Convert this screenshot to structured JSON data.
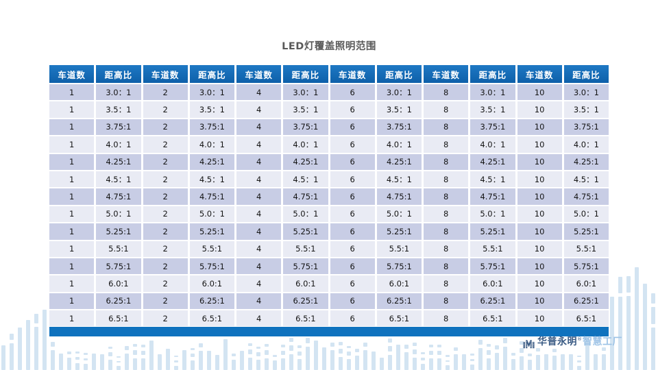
{
  "title": "LED灯覆盖照明范围",
  "table": {
    "lane_header": "车道数",
    "ratio_header": "距高比",
    "lane_counts": [
      "1",
      "2",
      "4",
      "6",
      "8",
      "10"
    ],
    "ratios": [
      "3.0：1",
      "3.5：1",
      "3.75:1",
      "4.0：1",
      "4.25:1",
      "4.5：1",
      "4.75:1",
      "5.0：1",
      "5.25:1",
      "5.5:1",
      "5.75:1",
      "6.0:1",
      "6.25:1",
      "6.5:1"
    ]
  },
  "footer": {
    "brand": "华普永明",
    "trademark": "®",
    "suffix": "智慧工厂"
  },
  "colors": {
    "header_blue_top": "#1e78c4",
    "header_blue_bottom": "#0e60aa",
    "bottom_bar_blue": "#0f72be",
    "row_dark": "#c8cde5",
    "row_light": "#e9ebf4",
    "decor_bar_blue": "#d3e4f2",
    "brand_dark_blue": "#3a5b84",
    "brand_light_blue": "#9dc3e6",
    "title_gray": "#595959"
  }
}
